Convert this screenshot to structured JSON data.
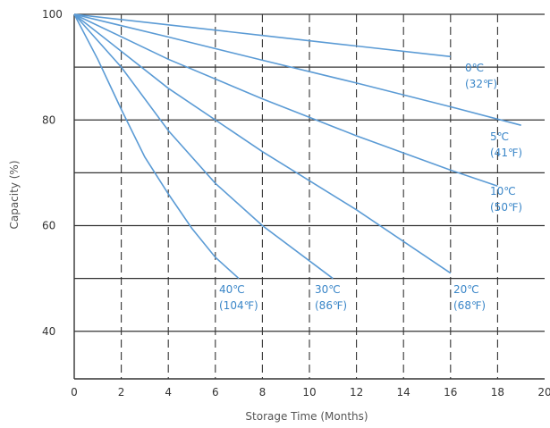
{
  "chart_data": {
    "type": "line",
    "title": "",
    "xlabel": "Storage Time (Months)",
    "ylabel": "Capacity (%)",
    "xlim": [
      0,
      20
    ],
    "ylim": [
      31,
      100
    ],
    "x_ticks": [
      "0",
      "2",
      "4",
      "6",
      "8",
      "10",
      "12",
      "14",
      "16",
      "18",
      "20"
    ],
    "y_ticks": [
      {
        "label": "100",
        "value": 100
      },
      {
        "label": "80",
        "value": 80
      },
      {
        "label": "60",
        "value": 60
      },
      {
        "label": "40",
        "value": 40
      }
    ],
    "grid": {
      "horizontal_solid_every": 10,
      "vertical_dashed_every": 2
    },
    "line_color": "#5b9bd5",
    "label_color": "#3a86c8",
    "series": [
      {
        "label_lines": [
          "0℃",
          "(32℉)"
        ],
        "points": [
          [
            0,
            100
          ],
          [
            4,
            98
          ],
          [
            8,
            96
          ],
          [
            12,
            94
          ],
          [
            16,
            92
          ]
        ]
      },
      {
        "label_lines": [
          "5℃",
          "(41℉)"
        ],
        "points": [
          [
            0,
            100
          ],
          [
            4,
            95.7
          ],
          [
            8,
            91.3
          ],
          [
            12,
            87
          ],
          [
            16,
            82.5
          ],
          [
            19,
            79
          ]
        ]
      },
      {
        "label_lines": [
          "10℃",
          "(50℉)"
        ],
        "points": [
          [
            0,
            100
          ],
          [
            4,
            91.5
          ],
          [
            8,
            84
          ],
          [
            12,
            77
          ],
          [
            16,
            70.5
          ],
          [
            18,
            67.5
          ]
        ]
      },
      {
        "label_lines": [
          "20℃",
          "(68℉)"
        ],
        "points": [
          [
            0,
            100
          ],
          [
            4,
            86
          ],
          [
            8,
            74
          ],
          [
            12,
            63
          ],
          [
            16,
            51
          ]
        ]
      },
      {
        "label_lines": [
          "30℃",
          "(86℉)"
        ],
        "points": [
          [
            0,
            100
          ],
          [
            2,
            90
          ],
          [
            4,
            78
          ],
          [
            6,
            68
          ],
          [
            8,
            60
          ],
          [
            11,
            50
          ]
        ]
      },
      {
        "label_lines": [
          "40℃",
          "(104℉)"
        ],
        "points": [
          [
            0,
            100
          ],
          [
            1,
            91.5
          ],
          [
            2,
            82
          ],
          [
            3,
            73
          ],
          [
            4,
            66
          ],
          [
            5,
            59.5
          ],
          [
            6,
            54
          ],
          [
            7,
            50
          ]
        ]
      }
    ]
  }
}
